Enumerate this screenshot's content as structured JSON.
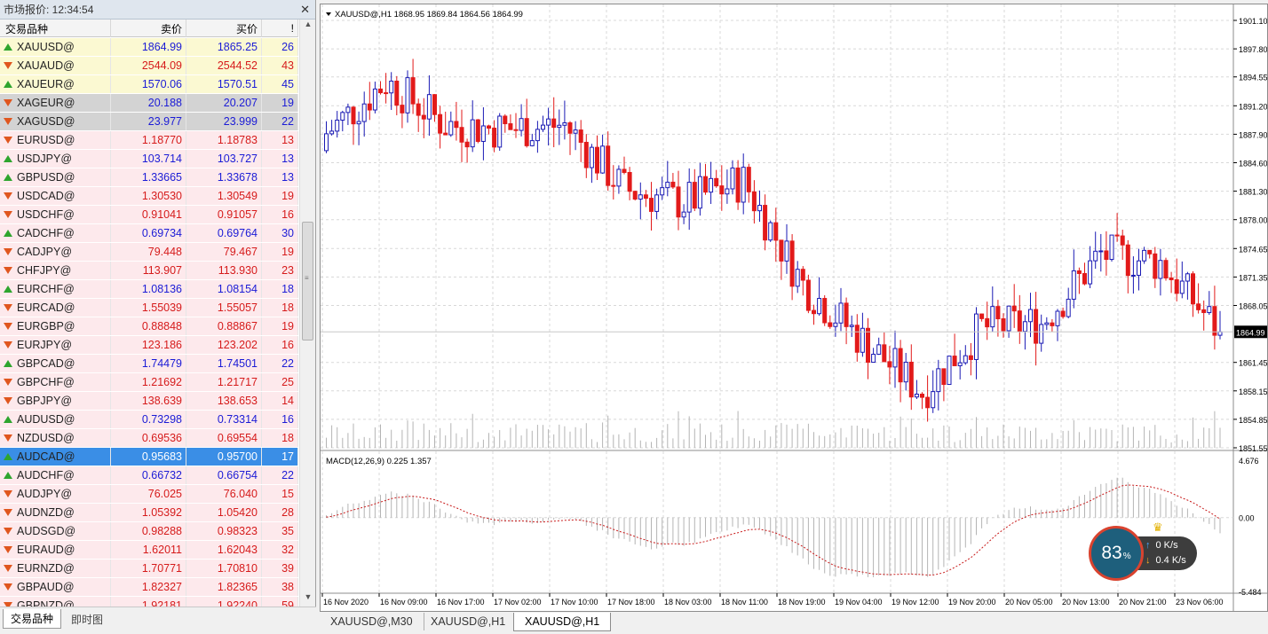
{
  "market_watch": {
    "title": "市场报价: 12:34:54",
    "columns": [
      "交易品种",
      "卖价",
      "买价",
      "!"
    ],
    "tabs": [
      "交易品种",
      "即时图"
    ],
    "rows": [
      {
        "symbol": "XAUUSD@",
        "bid": "1864.99",
        "ask": "1865.25",
        "spread": "26",
        "dir": "up",
        "bg": "y",
        "color": "blue"
      },
      {
        "symbol": "XAUAUD@",
        "bid": "2544.09",
        "ask": "2544.52",
        "spread": "43",
        "dir": "down",
        "bg": "y",
        "color": "red"
      },
      {
        "symbol": "XAUEUR@",
        "bid": "1570.06",
        "ask": "1570.51",
        "spread": "45",
        "dir": "up",
        "bg": "y",
        "color": "blue"
      },
      {
        "symbol": "XAGEUR@",
        "bid": "20.188",
        "ask": "20.207",
        "spread": "19",
        "dir": "down",
        "bg": "g",
        "color": "blue"
      },
      {
        "symbol": "XAGUSD@",
        "bid": "23.977",
        "ask": "23.999",
        "spread": "22",
        "dir": "down",
        "bg": "g",
        "color": "blue"
      },
      {
        "symbol": "EURUSD@",
        "bid": "1.18770",
        "ask": "1.18783",
        "spread": "13",
        "dir": "down",
        "bg": "p",
        "color": "red"
      },
      {
        "symbol": "USDJPY@",
        "bid": "103.714",
        "ask": "103.727",
        "spread": "13",
        "dir": "up",
        "bg": "p",
        "color": "blue"
      },
      {
        "symbol": "GBPUSD@",
        "bid": "1.33665",
        "ask": "1.33678",
        "spread": "13",
        "dir": "up",
        "bg": "p",
        "color": "blue"
      },
      {
        "symbol": "USDCAD@",
        "bid": "1.30530",
        "ask": "1.30549",
        "spread": "19",
        "dir": "down",
        "bg": "p",
        "color": "red"
      },
      {
        "symbol": "USDCHF@",
        "bid": "0.91041",
        "ask": "0.91057",
        "spread": "16",
        "dir": "down",
        "bg": "p",
        "color": "red"
      },
      {
        "symbol": "CADCHF@",
        "bid": "0.69734",
        "ask": "0.69764",
        "spread": "30",
        "dir": "up",
        "bg": "p",
        "color": "blue"
      },
      {
        "symbol": "CADJPY@",
        "bid": "79.448",
        "ask": "79.467",
        "spread": "19",
        "dir": "down",
        "bg": "p",
        "color": "red"
      },
      {
        "symbol": "CHFJPY@",
        "bid": "113.907",
        "ask": "113.930",
        "spread": "23",
        "dir": "down",
        "bg": "p",
        "color": "red"
      },
      {
        "symbol": "EURCHF@",
        "bid": "1.08136",
        "ask": "1.08154",
        "spread": "18",
        "dir": "up",
        "bg": "p",
        "color": "blue"
      },
      {
        "symbol": "EURCAD@",
        "bid": "1.55039",
        "ask": "1.55057",
        "spread": "18",
        "dir": "down",
        "bg": "p",
        "color": "red"
      },
      {
        "symbol": "EURGBP@",
        "bid": "0.88848",
        "ask": "0.88867",
        "spread": "19",
        "dir": "down",
        "bg": "p",
        "color": "red"
      },
      {
        "symbol": "EURJPY@",
        "bid": "123.186",
        "ask": "123.202",
        "spread": "16",
        "dir": "down",
        "bg": "p",
        "color": "red"
      },
      {
        "symbol": "GBPCAD@",
        "bid": "1.74479",
        "ask": "1.74501",
        "spread": "22",
        "dir": "up",
        "bg": "p",
        "color": "blue"
      },
      {
        "symbol": "GBPCHF@",
        "bid": "1.21692",
        "ask": "1.21717",
        "spread": "25",
        "dir": "down",
        "bg": "p",
        "color": "red"
      },
      {
        "symbol": "GBPJPY@",
        "bid": "138.639",
        "ask": "138.653",
        "spread": "14",
        "dir": "down",
        "bg": "p",
        "color": "red"
      },
      {
        "symbol": "AUDUSD@",
        "bid": "0.73298",
        "ask": "0.73314",
        "spread": "16",
        "dir": "up",
        "bg": "p",
        "color": "blue"
      },
      {
        "symbol": "NZDUSD@",
        "bid": "0.69536",
        "ask": "0.69554",
        "spread": "18",
        "dir": "down",
        "bg": "p",
        "color": "red"
      },
      {
        "symbol": "AUDCAD@",
        "bid": "0.95683",
        "ask": "0.95700",
        "spread": "17",
        "dir": "up",
        "bg": "sel",
        "color": "blue"
      },
      {
        "symbol": "AUDCHF@",
        "bid": "0.66732",
        "ask": "0.66754",
        "spread": "22",
        "dir": "up",
        "bg": "p",
        "color": "blue"
      },
      {
        "symbol": "AUDJPY@",
        "bid": "76.025",
        "ask": "76.040",
        "spread": "15",
        "dir": "down",
        "bg": "p",
        "color": "red"
      },
      {
        "symbol": "AUDNZD@",
        "bid": "1.05392",
        "ask": "1.05420",
        "spread": "28",
        "dir": "down",
        "bg": "p",
        "color": "red"
      },
      {
        "symbol": "AUDSGD@",
        "bid": "0.98288",
        "ask": "0.98323",
        "spread": "35",
        "dir": "down",
        "bg": "p",
        "color": "red"
      },
      {
        "symbol": "EURAUD@",
        "bid": "1.62011",
        "ask": "1.62043",
        "spread": "32",
        "dir": "down",
        "bg": "p",
        "color": "red"
      },
      {
        "symbol": "EURNZD@",
        "bid": "1.70771",
        "ask": "1.70810",
        "spread": "39",
        "dir": "down",
        "bg": "p",
        "color": "red"
      },
      {
        "symbol": "GBPAUD@",
        "bid": "1.82327",
        "ask": "1.82365",
        "spread": "38",
        "dir": "down",
        "bg": "p",
        "color": "red"
      },
      {
        "symbol": "GBPNZD@",
        "bid": "1.92181",
        "ask": "1.92240",
        "spread": "59",
        "dir": "down",
        "bg": "p",
        "color": "red"
      }
    ]
  },
  "chart": {
    "header": "XAUUSD@,H1  1868.95 1869.84 1864.56 1864.99",
    "header_icon": "dropdown-triangle-icon",
    "current_price_label": "1864.99",
    "price_axis": [
      "1901.10",
      "1897.80",
      "1894.55",
      "1891.20",
      "1887.90",
      "1884.60",
      "1881.30",
      "1878.00",
      "1874.65",
      "1871.35",
      "1868.05",
      "1861.45",
      "1858.15",
      "1854.85",
      "1851.55"
    ],
    "macd_label": "MACD(12,26,9) 0.225 1.357",
    "macd_axis": [
      "4.676",
      "0.00",
      "-5.484"
    ],
    "time_axis": [
      "16 Nov 2020",
      "16 Nov 09:00",
      "16 Nov 17:00",
      "17 Nov 02:00",
      "17 Nov 10:00",
      "17 Nov 18:00",
      "18 Nov 03:00",
      "18 Nov 11:00",
      "18 Nov 19:00",
      "19 Nov 04:00",
      "19 Nov 12:00",
      "19 Nov 20:00",
      "20 Nov 05:00",
      "20 Nov 13:00",
      "20 Nov 21:00",
      "23 Nov 06:00"
    ],
    "colors": {
      "bull": "#1a1ab4",
      "bear": "#e21a1a",
      "volume": "#b4b4b4",
      "grid": "#d8d8d8",
      "signal": "#c81a1a"
    }
  },
  "chart_data": {
    "type": "line",
    "title": "XAUUSD@,H1",
    "xlabel": "",
    "ylabel": "",
    "ylim": [
      1851.55,
      1901.1
    ],
    "x": [
      "16 Nov 2020",
      "16 Nov 09:00",
      "16 Nov 17:00",
      "17 Nov 02:00",
      "17 Nov 10:00",
      "17 Nov 18:00",
      "18 Nov 03:00",
      "18 Nov 11:00",
      "18 Nov 19:00",
      "19 Nov 04:00",
      "19 Nov 12:00",
      "19 Nov 20:00",
      "20 Nov 05:00",
      "20 Nov 13:00",
      "20 Nov 21:00",
      "23 Nov 06:00"
    ],
    "series": [
      {
        "name": "",
        "values": [
          1888.0,
          1894.0,
          1889.0,
          1888.5,
          1889.0,
          1881.5,
          1880.0,
          1882.5,
          1870.5,
          1864.0,
          1858.0,
          1865.5,
          1866.0,
          1874.0,
          1873.0,
          1864.99
        ]
      }
    ],
    "grid": true
  },
  "chart_tabs": [
    "XAUUSD@,M30",
    "XAUUSD@,H1",
    "XAUUSD@,H1"
  ],
  "speed_widget": {
    "percent": "83",
    "percent_unit": "%",
    "upload": "0 K/s",
    "download": "0.4 K/s"
  }
}
